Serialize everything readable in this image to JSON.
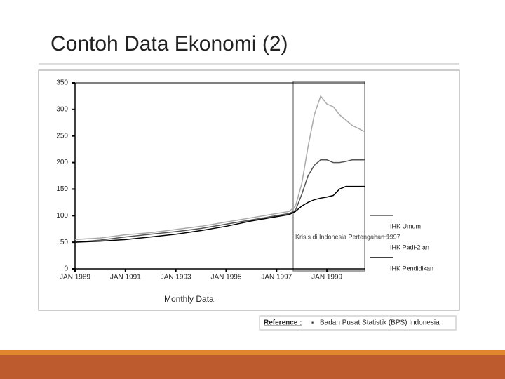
{
  "slide": {
    "title": "Contoh Data Ekonomi (2)"
  },
  "reference": {
    "label": "Reference :",
    "source": "Badan Pusat Statistik (BPS) Indonesia"
  },
  "chart_data": {
    "type": "line",
    "x_label": "Monthly Data",
    "annotation": "Krisis di Indonesia Pertengahan 1997",
    "x": [
      1989,
      1990,
      1991,
      1992,
      1993,
      1994,
      1995,
      1996,
      1997,
      1997.5,
      1997.75,
      1998,
      1998.25,
      1998.5,
      1998.75,
      1999,
      1999.25,
      1999.5,
      1999.75,
      2000,
      2000.5
    ],
    "series": [
      {
        "name": "IHK Umum",
        "color": "#555555",
        "values": [
          50,
          54,
          60,
          65,
          70,
          76,
          84,
          92,
          100,
          104,
          110,
          140,
          175,
          195,
          205,
          205,
          200,
          200,
          202,
          205,
          205
        ]
      },
      {
        "name": "IHK Padi-2 an",
        "color": "#aaaaaa",
        "values": [
          55,
          58,
          64,
          68,
          74,
          80,
          88,
          96,
          104,
          108,
          118,
          160,
          230,
          290,
          325,
          310,
          305,
          290,
          280,
          270,
          258
        ]
      },
      {
        "name": "IHK Pendidikan",
        "color": "#000000",
        "values": [
          50,
          52,
          55,
          60,
          65,
          72,
          80,
          90,
          98,
          102,
          108,
          118,
          125,
          130,
          133,
          135,
          138,
          150,
          155,
          155,
          155
        ]
      }
    ],
    "xlim": [
      1989,
      2000.5
    ],
    "xticks": [
      {
        "value": 1989,
        "label": "JAN 1989"
      },
      {
        "value": 1991,
        "label": "JAN 1991"
      },
      {
        "value": 1993,
        "label": "JAN 1993"
      },
      {
        "value": 1995,
        "label": "JAN 1995"
      },
      {
        "value": 1997,
        "label": "JAN 1997"
      },
      {
        "value": 1999,
        "label": "JAN 1999"
      }
    ],
    "ylim": [
      0,
      350
    ],
    "yticks": [
      0,
      50,
      100,
      150,
      200,
      250,
      300,
      350
    ]
  }
}
